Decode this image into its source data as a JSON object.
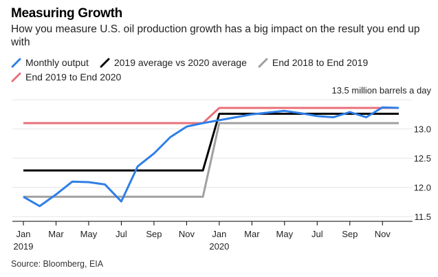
{
  "title": "Measuring Growth",
  "subtitle": "How you measure U.S. oil production growth has a big impact on the result you end up with",
  "source": "Source: Bloomberg, EIA",
  "colors": {
    "monthly": "#2e7fe8",
    "avg": "#000000",
    "end2019": "#a0a0a0",
    "end2020": "#e8707a",
    "grid": "#e5e5e5"
  },
  "chart_data": {
    "type": "line",
    "unit_label": "13.5 million barrels a day",
    "ylim": [
      11.42,
      13.56
    ],
    "yticks": [
      11.5,
      12.0,
      12.5,
      13.0
    ],
    "ytick_labels": [
      "11.5",
      "12.0",
      "12.5",
      "13.0"
    ],
    "xticks": [
      {
        "month": 0,
        "label": "Jan",
        "year": "2019"
      },
      {
        "month": 2,
        "label": "Mar",
        "year": ""
      },
      {
        "month": 4,
        "label": "May",
        "year": ""
      },
      {
        "month": 6,
        "label": "Jul",
        "year": ""
      },
      {
        "month": 8,
        "label": "Sep",
        "year": ""
      },
      {
        "month": 10,
        "label": "Nov",
        "year": ""
      },
      {
        "month": 12,
        "label": "Jan",
        "year": "2020"
      },
      {
        "month": 14,
        "label": "Mar",
        "year": ""
      },
      {
        "month": 16,
        "label": "May",
        "year": ""
      },
      {
        "month": 18,
        "label": "Jul",
        "year": ""
      },
      {
        "month": 20,
        "label": "Sep",
        "year": ""
      },
      {
        "month": 22,
        "label": "Nov",
        "year": ""
      }
    ],
    "x_range": [
      0,
      23
    ],
    "series": [
      {
        "name": "Monthly output",
        "key": "monthly",
        "points": [
          [
            0,
            11.84
          ],
          [
            1,
            11.68
          ],
          [
            2,
            11.88
          ],
          [
            3,
            12.1
          ],
          [
            4,
            12.09
          ],
          [
            5,
            12.05
          ],
          [
            6,
            11.76
          ],
          [
            7,
            12.36
          ],
          [
            8,
            12.58
          ],
          [
            9,
            12.86
          ],
          [
            10,
            13.04
          ],
          [
            11,
            13.1
          ],
          [
            12,
            13.15
          ],
          [
            13,
            13.2
          ],
          [
            14,
            13.25
          ],
          [
            15,
            13.28
          ],
          [
            16,
            13.31
          ],
          [
            17,
            13.27
          ],
          [
            18,
            13.22
          ],
          [
            19,
            13.2
          ],
          [
            20,
            13.29
          ],
          [
            21,
            13.2
          ],
          [
            22,
            13.37
          ],
          [
            23,
            13.36
          ]
        ]
      },
      {
        "name": "2019 average vs 2020 average",
        "key": "avg",
        "points": [
          [
            0,
            12.29
          ],
          [
            11,
            12.29
          ],
          [
            12,
            13.26
          ],
          [
            23,
            13.26
          ]
        ]
      },
      {
        "name": "End 2018 to End 2019",
        "key": "end2019",
        "points": [
          [
            0,
            11.84
          ],
          [
            11,
            11.84
          ],
          [
            12,
            13.1
          ],
          [
            23,
            13.1
          ]
        ]
      },
      {
        "name": "End 2019 to End 2020",
        "key": "end2020",
        "points": [
          [
            0,
            13.1
          ],
          [
            11,
            13.1
          ],
          [
            12,
            13.36
          ],
          [
            23,
            13.36
          ]
        ]
      }
    ]
  }
}
